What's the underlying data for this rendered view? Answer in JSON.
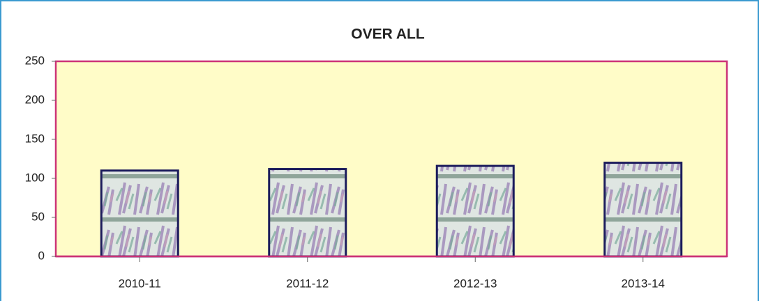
{
  "chart_data": {
    "type": "bar",
    "title": "OVER ALL",
    "categories": [
      "2010-11",
      "2011-12",
      "2012-13",
      "2013-14"
    ],
    "values": [
      110,
      112,
      116,
      120
    ],
    "ylim": [
      0,
      250
    ],
    "yticks": [
      0,
      50,
      100,
      150,
      200,
      250
    ],
    "grid": false,
    "plot_color": "#fffcc8",
    "plot_border": "#cc3377",
    "bar_border": "#1c1c5c"
  }
}
